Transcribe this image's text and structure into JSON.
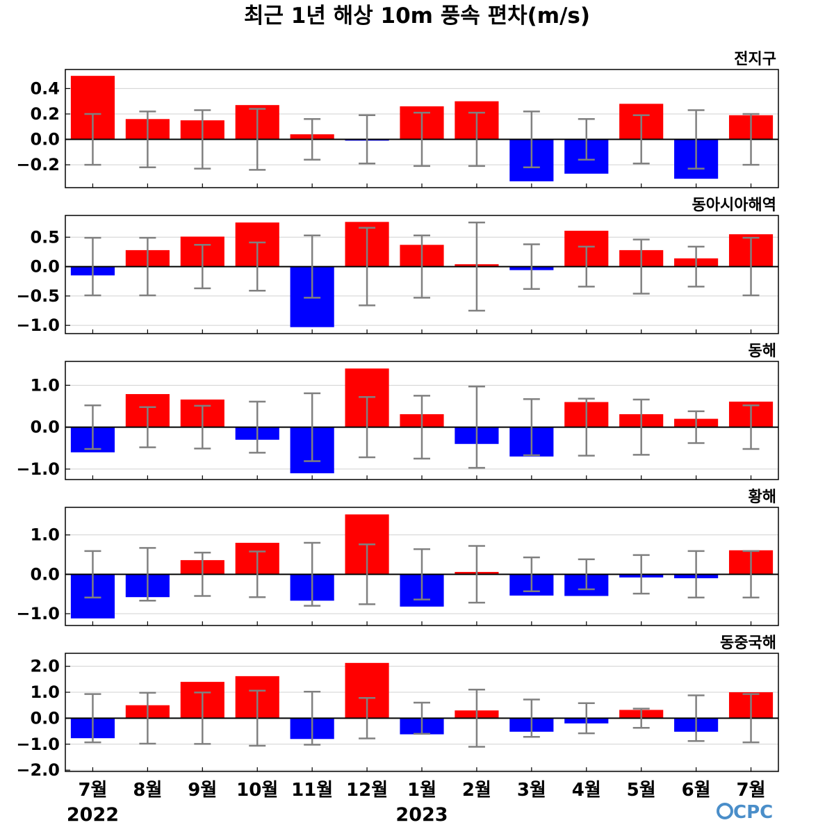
{
  "colors": {
    "positive": "#ff0000",
    "negative": "#0000ff",
    "errorbar": "#808080",
    "grid": "#d0d0d0",
    "zero": "#000000"
  },
  "logo": {
    "text": "CPC",
    "color": "#4a8ec9"
  },
  "chart_data": {
    "type": "bar",
    "title": "최근 1년 해상 10m 풍속 편차(m/s)",
    "categories": [
      "7월",
      "8월",
      "9월",
      "10월",
      "11월",
      "12월",
      "1월",
      "2월",
      "3월",
      "4월",
      "5월",
      "6월",
      "7월"
    ],
    "year_labels": [
      {
        "index": 0,
        "text": "2022"
      },
      {
        "index": 6,
        "text": "2023"
      }
    ],
    "panels": [
      {
        "name": "전지구",
        "ylim": [
          -0.38,
          0.55
        ],
        "yticks": [
          0.4,
          0.2,
          0.0,
          -0.2
        ],
        "ytick_labels": [
          "0.4",
          "0.2",
          "0.0",
          "−0.2"
        ],
        "values": [
          0.5,
          0.16,
          0.15,
          0.27,
          0.04,
          -0.01,
          0.26,
          0.3,
          -0.33,
          -0.27,
          0.28,
          -0.31,
          0.19
        ],
        "errors": [
          0.2,
          0.22,
          0.23,
          0.24,
          0.16,
          0.19,
          0.21,
          0.21,
          0.22,
          0.16,
          0.19,
          0.23,
          0.2
        ]
      },
      {
        "name": "동아시아해역",
        "ylim": [
          -1.14,
          0.87
        ],
        "yticks": [
          0.5,
          0.0,
          -0.5,
          -1.0
        ],
        "ytick_labels": [
          "0.5",
          "0.0",
          "−0.5",
          "−1.0"
        ],
        "values": [
          -0.15,
          0.28,
          0.51,
          0.75,
          -1.03,
          0.76,
          0.37,
          0.04,
          -0.06,
          0.61,
          0.28,
          0.14,
          0.55
        ],
        "errors": [
          0.49,
          0.49,
          0.37,
          0.41,
          0.53,
          0.66,
          0.53,
          0.75,
          0.38,
          0.34,
          0.46,
          0.34,
          0.49
        ]
      },
      {
        "name": "동해",
        "ylim": [
          -1.25,
          1.57
        ],
        "yticks": [
          1.0,
          0.0,
          -1.0
        ],
        "ytick_labels": [
          "1.0",
          "0.0",
          "−1.0"
        ],
        "values": [
          -0.6,
          0.79,
          0.66,
          -0.3,
          -1.1,
          1.4,
          0.31,
          -0.4,
          -0.7,
          0.6,
          0.31,
          0.2,
          0.61
        ],
        "errors": [
          0.52,
          0.48,
          0.51,
          0.61,
          0.81,
          0.72,
          0.75,
          0.97,
          0.67,
          0.68,
          0.66,
          0.38,
          0.52
        ]
      },
      {
        "name": "황해",
        "ylim": [
          -1.3,
          1.7
        ],
        "yticks": [
          1.0,
          0.0,
          -1.0
        ],
        "ytick_labels": [
          "1.0",
          "0.0",
          "−1.0"
        ],
        "values": [
          -1.12,
          -0.58,
          0.36,
          0.8,
          -0.67,
          1.52,
          -0.82,
          0.06,
          -0.54,
          -0.55,
          -0.08,
          -0.1,
          0.61
        ],
        "errors": [
          0.59,
          0.67,
          0.55,
          0.58,
          0.8,
          0.76,
          0.64,
          0.72,
          0.43,
          0.38,
          0.49,
          0.59,
          0.59
        ]
      },
      {
        "name": "동중국해",
        "ylim": [
          -2.05,
          2.5
        ],
        "yticks": [
          2.0,
          1.0,
          0.0,
          -1.0,
          -2.0
        ],
        "ytick_labels": [
          "2.0",
          "1.0",
          "0.0",
          "−1.0",
          "−2.0"
        ],
        "values": [
          -0.77,
          0.5,
          1.4,
          1.62,
          -0.8,
          2.13,
          -0.62,
          0.3,
          -0.52,
          -0.2,
          0.32,
          -0.52,
          1.0
        ],
        "errors": [
          0.93,
          0.98,
          0.99,
          1.06,
          1.02,
          0.78,
          0.6,
          1.1,
          0.72,
          0.58,
          0.37,
          0.88,
          0.93
        ]
      }
    ]
  }
}
